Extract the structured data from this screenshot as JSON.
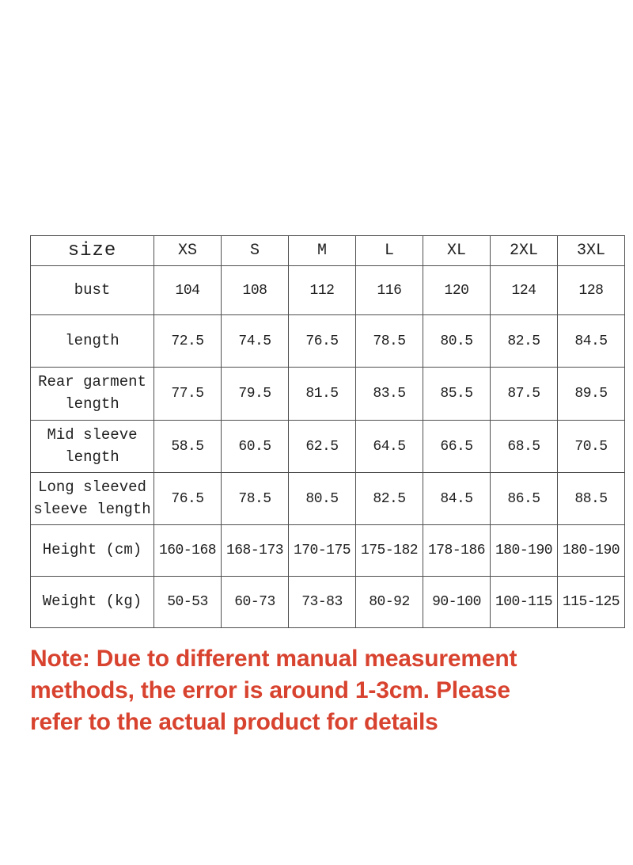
{
  "table": {
    "header": {
      "label": "size",
      "columns": [
        "XS",
        "S",
        "M",
        "L",
        "XL",
        "2XL",
        "3XL"
      ]
    },
    "rows": [
      {
        "label": "bust",
        "values": [
          "104",
          "108",
          "112",
          "116",
          "120",
          "124",
          "128"
        ]
      },
      {
        "label": "length",
        "values": [
          "72.5",
          "74.5",
          "76.5",
          "78.5",
          "80.5",
          "82.5",
          "84.5"
        ]
      },
      {
        "label": "Rear garment length",
        "values": [
          "77.5",
          "79.5",
          "81.5",
          "83.5",
          "85.5",
          "87.5",
          "89.5"
        ]
      },
      {
        "label": "Mid sleeve length",
        "values": [
          "58.5",
          "60.5",
          "62.5",
          "64.5",
          "66.5",
          "68.5",
          "70.5"
        ]
      },
      {
        "label": "Long sleeved sleeve length",
        "values": [
          "76.5",
          "78.5",
          "80.5",
          "82.5",
          "84.5",
          "86.5",
          "88.5"
        ]
      },
      {
        "label": "Height (cm)",
        "values": [
          "160-168",
          "168-173",
          "170-175",
          "175-182",
          "178-186",
          "180-190",
          "180-190"
        ]
      },
      {
        "label": "Weight (kg)",
        "values": [
          "50-53",
          "60-73",
          "73-83",
          "80-92",
          "90-100",
          "100-115",
          "115-125"
        ]
      }
    ]
  },
  "note": {
    "lines": [
      "Note: Due to different manual measurement",
      "methods, the error is around 1-3cm. Please",
      "refer to the actual product for details"
    ],
    "color": "#d8432f"
  },
  "colors": {
    "border": "#4f4f4f",
    "text": "#1f1f1f",
    "background": "#ffffff"
  }
}
